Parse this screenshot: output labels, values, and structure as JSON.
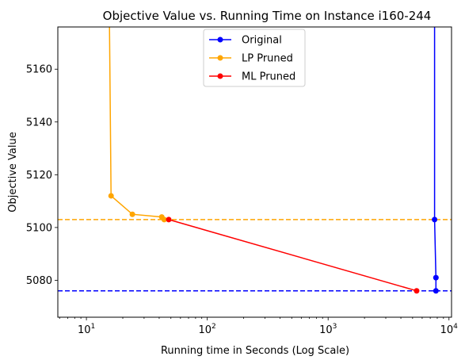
{
  "chart_data": {
    "type": "line",
    "title": "Objective Value vs. Running Time on Instance i160-244",
    "xlabel": "Running time in Seconds (Log Scale)",
    "ylabel": "Objective Value",
    "xscale": "log",
    "xlim": [
      5.8,
      10500
    ],
    "ylim": [
      5066,
      5176
    ],
    "xticks": [
      {
        "value": 10,
        "base": "10",
        "exp": "1"
      },
      {
        "value": 100,
        "base": "10",
        "exp": "2"
      },
      {
        "value": 1000,
        "base": "10",
        "exp": "3"
      },
      {
        "value": 10000,
        "base": "10",
        "exp": "4"
      }
    ],
    "yticks": [
      5080,
      5100,
      5120,
      5140,
      5160
    ],
    "legend_position": "upper-center",
    "series": [
      {
        "name": "Original",
        "color": "#0000ff",
        "points": [
          [
            7600,
            5180
          ],
          [
            7600,
            5103
          ],
          [
            7800,
            5081
          ],
          [
            7800,
            5076
          ]
        ],
        "markers": [
          [
            7600,
            5103
          ],
          [
            7800,
            5081
          ],
          [
            7800,
            5076
          ]
        ]
      },
      {
        "name": "LP Pruned",
        "color": "#ffa500",
        "points": [
          [
            15.5,
            5180
          ],
          [
            16,
            5112
          ],
          [
            24,
            5105
          ],
          [
            42,
            5104
          ],
          [
            44,
            5103
          ]
        ],
        "markers": [
          [
            16,
            5112
          ],
          [
            24,
            5105
          ],
          [
            42,
            5104
          ],
          [
            44,
            5103
          ]
        ]
      },
      {
        "name": "ML Pruned",
        "color": "#ff0000",
        "points": [
          [
            48,
            5103
          ],
          [
            5400,
            5076
          ]
        ],
        "markers": [
          [
            48,
            5103
          ],
          [
            5400,
            5076
          ]
        ]
      }
    ],
    "hlines": [
      {
        "y": 5103,
        "color": "#ffa500",
        "style": "dashed"
      },
      {
        "y": 5076,
        "color": "#0000ff",
        "style": "dashed"
      }
    ]
  }
}
